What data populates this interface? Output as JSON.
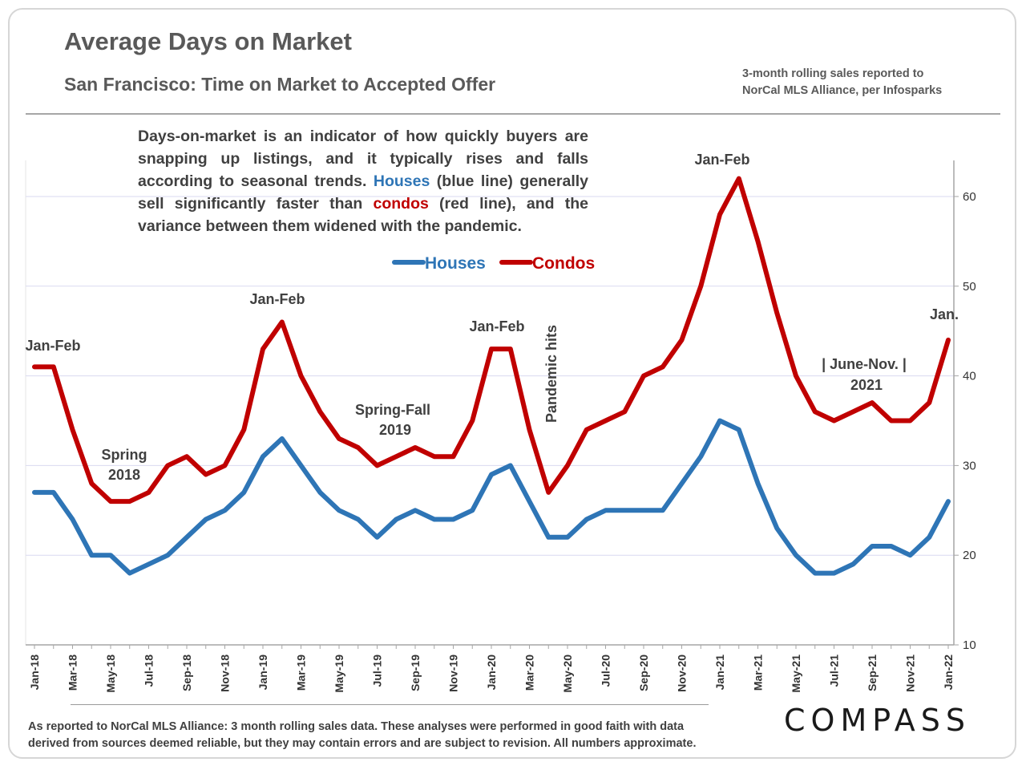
{
  "header": {
    "title": "Average Days on Market",
    "subtitle": "San Francisco: Time on Market to Accepted Offer",
    "source_line1": "3-month rolling sales reported to",
    "source_line2": "NorCal MLS Alliance, per Infosparks"
  },
  "description": {
    "part1": "Days-on-market is an indicator of how quickly buyers are snapping up listings, and it typically rises and falls according to seasonal trends. ",
    "houses_word": "Houses",
    "part2": " (blue line) generally sell significantly faster than ",
    "condos_word": "condos",
    "part3": " (red line), and the variance between them widened with the pandemic."
  },
  "footer": {
    "line1": "As reported to NorCal MLS Alliance: 3 month rolling sales data. These analyses were performed in good faith with data",
    "line2": "derived from sources deemed reliable, but they may contain errors and are subject to revision. All numbers approximate."
  },
  "logo": "COMPASS",
  "colors": {
    "houses": "#2e75b6",
    "condos": "#c00000",
    "grid": "#d9d9f0",
    "axis": "#a6a6a6"
  },
  "chart_data": {
    "type": "line",
    "title": "Average Days on Market",
    "ylim": [
      10,
      63
    ],
    "yticks": [
      10,
      20,
      30,
      40,
      50,
      60
    ],
    "y_axis_side": "right",
    "grid": true,
    "legend_placement": "top-center",
    "x": [
      "Jan-18",
      "Feb-18",
      "Mar-18",
      "Apr-18",
      "May-18",
      "Jun-18",
      "Jul-18",
      "Aug-18",
      "Sep-18",
      "Oct-18",
      "Nov-18",
      "Dec-18",
      "Jan-19",
      "Feb-19",
      "Mar-19",
      "Apr-19",
      "May-19",
      "Jun-19",
      "Jul-19",
      "Aug-19",
      "Sep-19",
      "Oct-19",
      "Nov-19",
      "Dec-19",
      "Jan-20",
      "Feb-20",
      "Mar-20",
      "Apr-20",
      "May-20",
      "Jun-20",
      "Jul-20",
      "Aug-20",
      "Sep-20",
      "Oct-20",
      "Nov-20",
      "Dec-20",
      "Jan-21",
      "Feb-21",
      "Mar-21",
      "Apr-21",
      "May-21",
      "Jun-21",
      "Jul-21",
      "Aug-21",
      "Sep-21",
      "Oct-21",
      "Nov-21",
      "Dec-21",
      "Jan-22"
    ],
    "x_tick_labels": [
      "Jan-18",
      "Mar-18",
      "May-18",
      "Jul-18",
      "Sep-18",
      "Nov-18",
      "Jan-19",
      "Mar-19",
      "May-19",
      "Jul-19",
      "Sep-19",
      "Nov-19",
      "Jan-20",
      "Mar-20",
      "May-20",
      "Jul-20",
      "Sep-20",
      "Nov-20",
      "Jan-21",
      "Mar-21",
      "May-21",
      "Jul-21",
      "Sep-21",
      "Nov-21",
      "Jan-22"
    ],
    "series": [
      {
        "name": "Houses",
        "color": "#2e75b6",
        "values": [
          27,
          27,
          24,
          20,
          20,
          18,
          19,
          20,
          22,
          24,
          25,
          27,
          31,
          33,
          30,
          27,
          25,
          24,
          22,
          24,
          25,
          24,
          24,
          25,
          29,
          30,
          26,
          22,
          22,
          24,
          25,
          25,
          25,
          25,
          28,
          31,
          35,
          34,
          28,
          23,
          20,
          18,
          18,
          19,
          21,
          21,
          20,
          22,
          26
        ]
      },
      {
        "name": "Condos",
        "color": "#c00000",
        "values": [
          41,
          41,
          34,
          28,
          26,
          26,
          27,
          30,
          31,
          29,
          30,
          34,
          43,
          46,
          40,
          36,
          33,
          32,
          30,
          31,
          32,
          31,
          31,
          35,
          43,
          43,
          34,
          27,
          30,
          34,
          35,
          36,
          40,
          41,
          44,
          50,
          58,
          62,
          55,
          47,
          40,
          36,
          35,
          36,
          37,
          35,
          35,
          37,
          44
        ]
      }
    ],
    "annotations": [
      {
        "text": "Jan-Feb",
        "at": "Jan-18"
      },
      {
        "text": "Spring",
        "at": "May-18"
      },
      {
        "text": "2018",
        "at": "May-18"
      },
      {
        "text": "Jan-Feb",
        "at": "Feb-19"
      },
      {
        "text": "Spring-Fall",
        "at": "Aug-19"
      },
      {
        "text": "2019",
        "at": "Aug-19"
      },
      {
        "text": "Jan-Feb",
        "at": "Jan-20"
      },
      {
        "text": "Pandemic hits",
        "at": "Apr-20"
      },
      {
        "text": "Jan-Feb",
        "at": "Jan-21"
      },
      {
        "text": "|  June-Nov.  |",
        "at": "Sep-21"
      },
      {
        "text": "2021",
        "at": "Sep-21"
      },
      {
        "text": "Jan.",
        "at": "Jan-22"
      }
    ]
  }
}
